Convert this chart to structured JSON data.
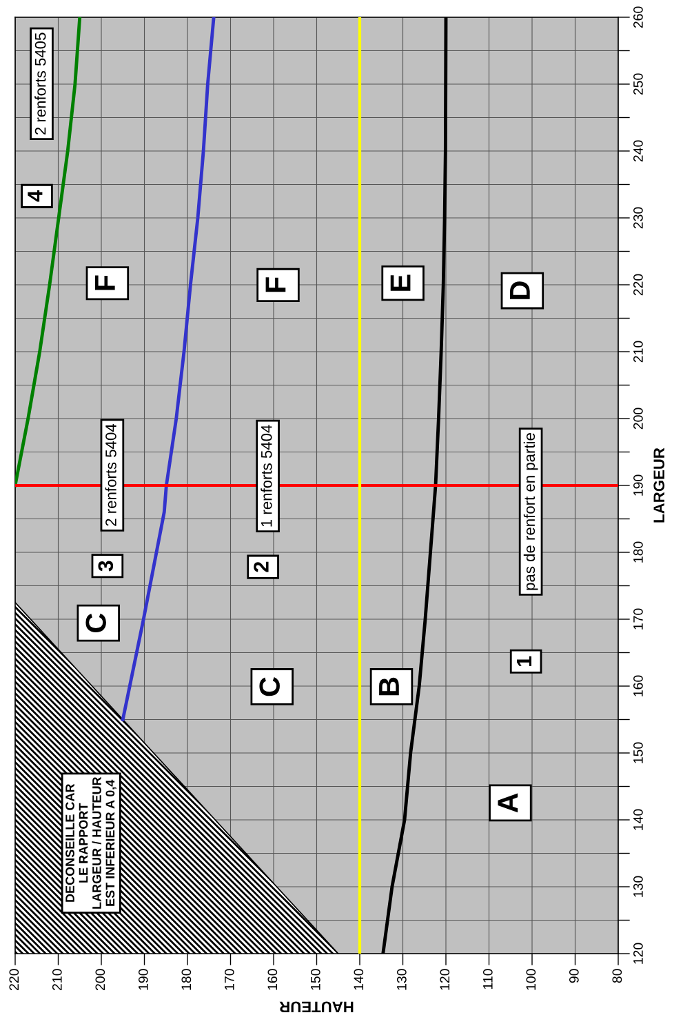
{
  "chart_data": {
    "type": "line",
    "xlabel": "HAUTEUR",
    "ylabel": "LARGEUR",
    "xlim": [
      220,
      80
    ],
    "ylim": [
      120,
      260
    ],
    "xticks": [
      220,
      210,
      200,
      190,
      180,
      170,
      160,
      150,
      140,
      130,
      120,
      110,
      100,
      90,
      80
    ],
    "yticks": [
      120,
      {
        "value": 125,
        "label": null
      },
      130,
      {
        "value": 135,
        "label": null
      },
      140,
      {
        "value": 145,
        "label": null
      },
      150,
      {
        "value": 155,
        "label": null
      },
      160,
      {
        "value": 165,
        "label": null
      },
      170,
      {
        "value": 175,
        "label": null
      },
      180,
      {
        "value": 185,
        "label": null
      },
      190,
      {
        "value": 195,
        "label": null
      },
      200,
      {
        "value": 205,
        "label": null
      },
      210,
      {
        "value": 215,
        "label": null
      },
      220,
      {
        "value": 225,
        "label": null
      },
      230,
      {
        "value": 235,
        "label": null
      },
      240,
      {
        "value": 245,
        "label": null
      },
      250,
      {
        "value": 255,
        "label": null
      },
      260
    ],
    "grid": true,
    "series": [
      {
        "type": "area",
        "color": "#000000",
        "x": [
          145,
          220
        ],
        "values": [
          120,
          172.5
        ]
      },
      {
        "color": "#000000",
        "x": [
          134.6,
          132.5,
          129.6,
          128.2,
          126.2,
          124.8,
          123.6,
          122.4,
          121.7,
          121.1,
          120.6,
          120.3,
          120.1,
          120.0
        ],
        "values": [
          120,
          130,
          140,
          150,
          160,
          170,
          180,
          190,
          200,
          210,
          220,
          230,
          240,
          260
        ]
      },
      {
        "color": "#3333cc",
        "x": [
          195.0,
          190.2,
          185.4,
          184.9,
          182.6,
          180.8,
          179.3,
          177.6,
          176.3,
          175.3,
          173.9
        ],
        "values": [
          155,
          170,
          186,
          190,
          200,
          210,
          220,
          230,
          240,
          250,
          260
        ]
      },
      {
        "color": "#008000",
        "x": [
          220,
          217.0,
          214.3,
          212.0,
          209.9,
          207.8,
          206.1,
          205.0
        ],
        "values": [
          190,
          200,
          210,
          220,
          230,
          240,
          250,
          260
        ]
      }
    ],
    "ref_lines": [
      {
        "axis": "y",
        "value": 190,
        "color": "#ff0000"
      },
      {
        "axis": "x",
        "value": 140,
        "color": "#ffff00"
      }
    ],
    "annotations": [
      "DECONSEILLE CAR\nLE RAPPORT\nLARGEUR / HAUTEUR\nEST INFERIEUR A 0,4",
      "A",
      "B",
      "C",
      "C",
      "D",
      "E",
      "F",
      "F",
      "pas de renfort en partie",
      "1",
      "1 renforts 5404",
      "2",
      "2 renforts 5404",
      "3",
      "2 renforts 5405",
      "4"
    ]
  }
}
